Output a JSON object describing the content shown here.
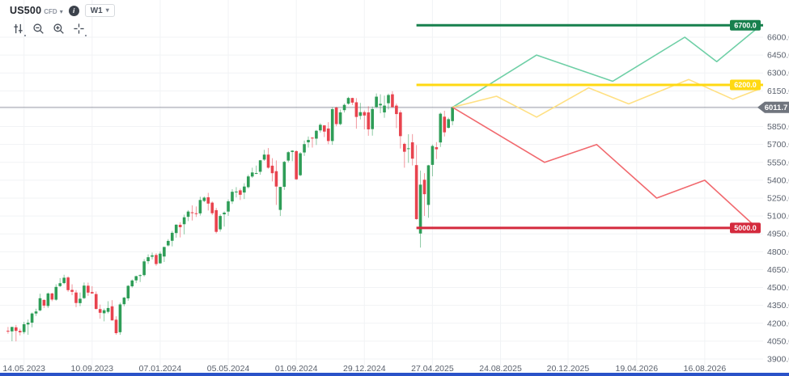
{
  "header": {
    "symbol": "US500",
    "symbol_type": "CFD",
    "info_icon": "i",
    "timeframe": "W1"
  },
  "icons": {
    "caret": "▾"
  },
  "toolbar": {
    "buttons": [
      "chart-settings",
      "zoom-out",
      "zoom-in",
      "crosshair"
    ]
  },
  "colors": {
    "background": "#ffffff",
    "grid": "#f1f3f5",
    "axis_text": "#5a616d",
    "candle_up": "#2e9d57",
    "candle_down": "#e8434e",
    "current_price_line": "#9a9ea8",
    "current_price_badge": "#70757e",
    "level_green": "#17804d",
    "level_yellow": "#ffd912",
    "level_red": "#d42a3d",
    "scenario_bullish": "#6ecfa6",
    "scenario_sideways": "#ffe083",
    "scenario_bearish": "#f1696e",
    "bottom_bar": "#2a52c8"
  },
  "chart_data": {
    "type": "candlestick",
    "title": "US500 CFD weekly chart with price projection scenarios",
    "x_axis": {
      "start": "2023-04-02",
      "end": "2026-11-26",
      "ticks": [
        {
          "date": "2023-05-14",
          "label": "14.05.2023"
        },
        {
          "date": "2023-09-10",
          "label": "10.09.2023"
        },
        {
          "date": "2024-01-07",
          "label": "07.01.2024"
        },
        {
          "date": "2024-05-05",
          "label": "05.05.2024"
        },
        {
          "date": "2024-09-01",
          "label": "01.09.2024"
        },
        {
          "date": "2024-12-29",
          "label": "29.12.2024"
        },
        {
          "date": "2025-04-27",
          "label": "27.04.2025"
        },
        {
          "date": "2025-08-24",
          "label": "24.08.2025"
        },
        {
          "date": "2025-12-20",
          "label": "20.12.2025"
        },
        {
          "date": "2026-04-19",
          "label": "19.04.2026"
        },
        {
          "date": "2026-08-16",
          "label": "16.08.2026"
        }
      ]
    },
    "y_axis": {
      "min": 3900,
      "max": 6600,
      "step": 150
    },
    "current_price": {
      "value": 6011.7,
      "label": "6011.7"
    },
    "levels": [
      {
        "price": 6700,
        "label": "6700.0",
        "color": "#17804d",
        "from": "2025-03-30",
        "to": "2026-11-26"
      },
      {
        "price": 6200,
        "label": "6200.0",
        "color": "#ffd912",
        "from": "2025-03-30",
        "to": "2026-11-26"
      },
      {
        "price": 5000,
        "label": "5000.0",
        "color": "#d42a3d",
        "from": "2025-03-30",
        "to": "2026-11-17"
      }
    ],
    "scenarios": [
      {
        "name": "bullish",
        "color": "#6ecfa6",
        "points": [
          [
            "2025-06-01",
            6011.7
          ],
          [
            "2025-10-26",
            6450
          ],
          [
            "2026-03-08",
            6230
          ],
          [
            "2026-07-12",
            6600
          ],
          [
            "2026-09-06",
            6395
          ],
          [
            "2026-11-22",
            6700
          ]
        ]
      },
      {
        "name": "sideways",
        "color": "#ffe083",
        "points": [
          [
            "2025-06-01",
            6011.7
          ],
          [
            "2025-08-17",
            6105
          ],
          [
            "2025-10-26",
            5930
          ],
          [
            "2026-01-25",
            6175
          ],
          [
            "2026-04-05",
            6040
          ],
          [
            "2026-07-19",
            6245
          ],
          [
            "2026-10-04",
            6080
          ],
          [
            "2026-11-22",
            6170
          ]
        ]
      },
      {
        "name": "bearish",
        "color": "#f1696e",
        "points": [
          [
            "2025-06-01",
            6011.7
          ],
          [
            "2025-11-09",
            5550
          ],
          [
            "2026-02-08",
            5700
          ],
          [
            "2026-05-24",
            5250
          ],
          [
            "2026-08-16",
            5400
          ],
          [
            "2026-11-15",
            5000
          ]
        ]
      }
    ],
    "candles_start": "2023-04-16",
    "candles_interval_days": 7,
    "candles_format": [
      "open",
      "high",
      "low",
      "close"
    ],
    "candles": [
      [
        4137,
        4169,
        4113,
        4133
      ],
      [
        4132,
        4170,
        4049,
        4169
      ],
      [
        4166,
        4186,
        4048,
        4136
      ],
      [
        4136,
        4154,
        4098,
        4124
      ],
      [
        4126,
        4212,
        4109,
        4192
      ],
      [
        4190,
        4231,
        4103,
        4205
      ],
      [
        4205,
        4290,
        4166,
        4282
      ],
      [
        4282,
        4322,
        4261,
        4299
      ],
      [
        4308,
        4448,
        4301,
        4410
      ],
      [
        4396,
        4400,
        4328,
        4348
      ],
      [
        4345,
        4458,
        4328,
        4450
      ],
      [
        4450,
        4456,
        4385,
        4399
      ],
      [
        4398,
        4527,
        4389,
        4505
      ],
      [
        4512,
        4579,
        4504,
        4536
      ],
      [
        4537,
        4607,
        4528,
        4582
      ],
      [
        4584,
        4594,
        4464,
        4478
      ],
      [
        4480,
        4527,
        4436,
        4464
      ],
      [
        4458,
        4479,
        4335,
        4370
      ],
      [
        4369,
        4458,
        4344,
        4406
      ],
      [
        4411,
        4542,
        4403,
        4516
      ],
      [
        4515,
        4541,
        4430,
        4457
      ],
      [
        4462,
        4511,
        4447,
        4450
      ],
      [
        4445,
        4467,
        4316,
        4320
      ],
      [
        4319,
        4357,
        4238,
        4288
      ],
      [
        4284,
        4324,
        4216,
        4309
      ],
      [
        4296,
        4385,
        4283,
        4328
      ],
      [
        4342,
        4394,
        4224,
        4224
      ],
      [
        4230,
        4259,
        4104,
        4117
      ],
      [
        4125,
        4373,
        4103,
        4358
      ],
      [
        4360,
        4421,
        4343,
        4415
      ],
      [
        4409,
        4520,
        4389,
        4514
      ],
      [
        4510,
        4568,
        4499,
        4559
      ],
      [
        4560,
        4599,
        4537,
        4595
      ],
      [
        4597,
        4609,
        4546,
        4604
      ],
      [
        4604,
        4738,
        4593,
        4719
      ],
      [
        4721,
        4778,
        4698,
        4754
      ],
      [
        4758,
        4793,
        4736,
        4770
      ],
      [
        4773,
        4788,
        4682,
        4697
      ],
      [
        4703,
        4802,
        4699,
        4784
      ],
      [
        4760,
        4842,
        4714,
        4840
      ],
      [
        4853,
        4906,
        4844,
        4891
      ],
      [
        4892,
        4975,
        4845,
        4959
      ],
      [
        4957,
        5030,
        4918,
        5027
      ],
      [
        5026,
        5048,
        4920,
        5006
      ],
      [
        5031,
        5111,
        4946,
        5089
      ],
      [
        5093,
        5149,
        5057,
        5137
      ],
      [
        5131,
        5189,
        5062,
        5124
      ],
      [
        5123,
        5180,
        5092,
        5117
      ],
      [
        5122,
        5261,
        5104,
        5234
      ],
      [
        5226,
        5264,
        5216,
        5254
      ],
      [
        5257,
        5294,
        5146,
        5204
      ],
      [
        5212,
        5222,
        5108,
        5123
      ],
      [
        5149,
        5168,
        4954,
        4967
      ],
      [
        4988,
        5114,
        4969,
        5100
      ],
      [
        5114,
        5139,
        5011,
        5128
      ],
      [
        5137,
        5239,
        5101,
        5223
      ],
      [
        5222,
        5325,
        5201,
        5303
      ],
      [
        5305,
        5342,
        5256,
        5305
      ],
      [
        5315,
        5330,
        5234,
        5278
      ],
      [
        5297,
        5375,
        5242,
        5347
      ],
      [
        5342,
        5447,
        5331,
        5432
      ],
      [
        5431,
        5505,
        5420,
        5465
      ],
      [
        5459,
        5523,
        5451,
        5460
      ],
      [
        5471,
        5570,
        5446,
        5567
      ],
      [
        5573,
        5655,
        5562,
        5615
      ],
      [
        5615,
        5670,
        5497,
        5505
      ],
      [
        5522,
        5585,
        5390,
        5459
      ],
      [
        5476,
        5566,
        5193,
        5347
      ],
      [
        5151,
        5345,
        5100,
        5344
      ],
      [
        5345,
        5562,
        5319,
        5554
      ],
      [
        5565,
        5643,
        5550,
        5635
      ],
      [
        5637,
        5652,
        5560,
        5648
      ],
      [
        5644,
        5651,
        5402,
        5408
      ],
      [
        5442,
        5636,
        5434,
        5626
      ],
      [
        5633,
        5733,
        5604,
        5703
      ],
      [
        5718,
        5767,
        5674,
        5738
      ],
      [
        5757,
        5763,
        5674,
        5751
      ],
      [
        5749,
        5822,
        5696,
        5815
      ],
      [
        5818,
        5878,
        5800,
        5865
      ],
      [
        5860,
        5863,
        5762,
        5808
      ],
      [
        5834,
        5887,
        5702,
        5729
      ],
      [
        5729,
        6012,
        5697,
        5996
      ],
      [
        6010,
        6017,
        5853,
        5871
      ],
      [
        5871,
        5993,
        5861,
        5969
      ],
      [
        5988,
        6044,
        5968,
        6032
      ],
      [
        6042,
        6100,
        6034,
        6090
      ],
      [
        6090,
        6092,
        6031,
        6051
      ],
      [
        6054,
        6089,
        5832,
        5931
      ],
      [
        5940,
        6049,
        5910,
        5971
      ],
      [
        5971,
        5985,
        5827,
        5943
      ],
      [
        5969,
        6021,
        5773,
        5827
      ],
      [
        5829,
        6018,
        5774,
        5997
      ],
      [
        6014,
        6128,
        6006,
        6101
      ],
      [
        6028,
        6121,
        5962,
        6041
      ],
      [
        5969,
        6110,
        5924,
        6026
      ],
      [
        6046,
        6127,
        5994,
        6115
      ],
      [
        6121,
        6147,
        6008,
        6013
      ],
      [
        6026,
        6043,
        5837,
        5955
      ],
      [
        5969,
        5986,
        5666,
        5770
      ],
      [
        5705,
        5715,
        5505,
        5639
      ],
      [
        5662,
        5786,
        5546,
        5668
      ],
      [
        5718,
        5787,
        5524,
        5581
      ],
      [
        5527,
        5695,
        5069,
        5074
      ],
      [
        4953,
        5481,
        4835,
        5363
      ],
      [
        5404,
        5459,
        5101,
        5283
      ],
      [
        5193,
        5529,
        5085,
        5525
      ],
      [
        5529,
        5700,
        5433,
        5687
      ],
      [
        5677,
        5720,
        5578,
        5660
      ],
      [
        5717,
        5968,
        5679,
        5958
      ],
      [
        5933,
        5983,
        5767,
        5802
      ],
      [
        5840,
        5925,
        5833,
        5912
      ],
      [
        5896,
        6020,
        5861,
        6011.7
      ]
    ]
  }
}
